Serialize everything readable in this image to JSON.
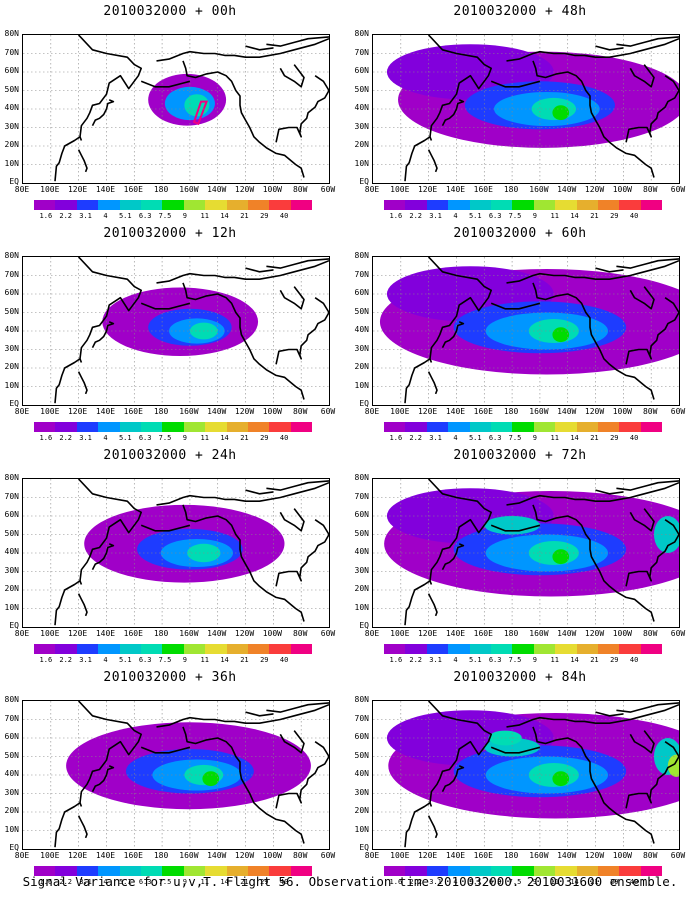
{
  "panels": [
    {
      "title": "2010032000 + 00h",
      "level": 0
    },
    {
      "title": "2010032000 + 48h",
      "level": 4
    },
    {
      "title": "2010032000 + 12h",
      "level": 1
    },
    {
      "title": "2010032000 + 60h",
      "level": 5
    },
    {
      "title": "2010032000 + 24h",
      "level": 2
    },
    {
      "title": "2010032000 + 72h",
      "level": 6
    },
    {
      "title": "2010032000 + 36h",
      "level": 3
    },
    {
      "title": "2010032000 + 84h",
      "level": 7
    }
  ],
  "y_labels": [
    "80N",
    "70N",
    "60N",
    "50N",
    "40N",
    "30N",
    "20N",
    "10N",
    "EQ"
  ],
  "x_labels": [
    "80E",
    "100E",
    "120E",
    "140E",
    "160E",
    "180",
    "160W",
    "140W",
    "120W",
    "100W",
    "80W",
    "60W"
  ],
  "colorbar": {
    "labels": [
      "1.6",
      "2.2",
      "3.1",
      "4",
      "5.1",
      "6.3",
      "7.5",
      "9",
      "11",
      "14",
      "21",
      "29",
      "40"
    ],
    "colors": [
      "#a000c8",
      "#8200dc",
      "#1e3cff",
      "#0096ff",
      "#00c8c8",
      "#00dcb4",
      "#00dc00",
      "#a0e632",
      "#e6dc32",
      "#e6af2d",
      "#f08228",
      "#fa3c3c",
      "#f00082"
    ]
  },
  "caption": "Signal Variance for u,v,T. Flight 56. Observation time 2010032000. 2010031600 ensemble."
}
